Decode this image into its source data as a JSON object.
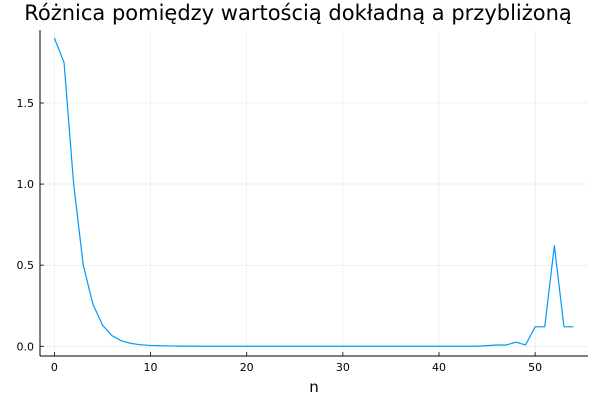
{
  "chart_data": {
    "type": "line",
    "title": "Różnica pomiędzy wartością dokładną a przybliżoną",
    "xlabel": "n",
    "ylabel": "",
    "xlim": [
      -1.5,
      55.5
    ],
    "ylim": [
      -0.06,
      1.95
    ],
    "x_ticks": [
      0,
      10,
      20,
      30,
      40,
      50
    ],
    "x_tick_labels": [
      "0",
      "10",
      "20",
      "30",
      "40",
      "50"
    ],
    "y_ticks": [
      0.0,
      0.5,
      1.0,
      1.5
    ],
    "y_tick_labels": [
      "0.0",
      "0.5",
      "1.0",
      "1.5"
    ],
    "grid": true,
    "legend": "none",
    "series": [
      {
        "color": "#009AFA",
        "x": [
          0,
          1,
          2,
          3,
          4,
          5,
          6,
          7,
          8,
          9,
          10,
          11,
          12,
          13,
          14,
          15,
          16,
          17,
          18,
          19,
          20,
          21,
          22,
          23,
          24,
          25,
          26,
          27,
          28,
          29,
          30,
          31,
          32,
          33,
          34,
          35,
          36,
          37,
          38,
          39,
          40,
          41,
          42,
          43,
          44,
          45,
          46,
          47,
          48,
          49,
          50,
          51,
          52,
          53,
          54
        ],
        "y": [
          1.9,
          1.75,
          1.0,
          0.5,
          0.26,
          0.13,
          0.065,
          0.033,
          0.017,
          0.009,
          0.005,
          0.003,
          0.002,
          0.001,
          0.001,
          0.0,
          0.0,
          0.0,
          0.0,
          0.0,
          0.0,
          0.0,
          0.0,
          0.0,
          0.0,
          0.0,
          0.0,
          0.0,
          0.0,
          0.0,
          0.0,
          0.0,
          0.0,
          0.0,
          0.0,
          0.0,
          0.0,
          0.0,
          0.0,
          0.0,
          0.0,
          0.0,
          0.0,
          0.0,
          0.0,
          0.004,
          0.008,
          0.008,
          0.025,
          0.008,
          0.12,
          0.12,
          0.62,
          0.12,
          0.12
        ]
      }
    ]
  }
}
